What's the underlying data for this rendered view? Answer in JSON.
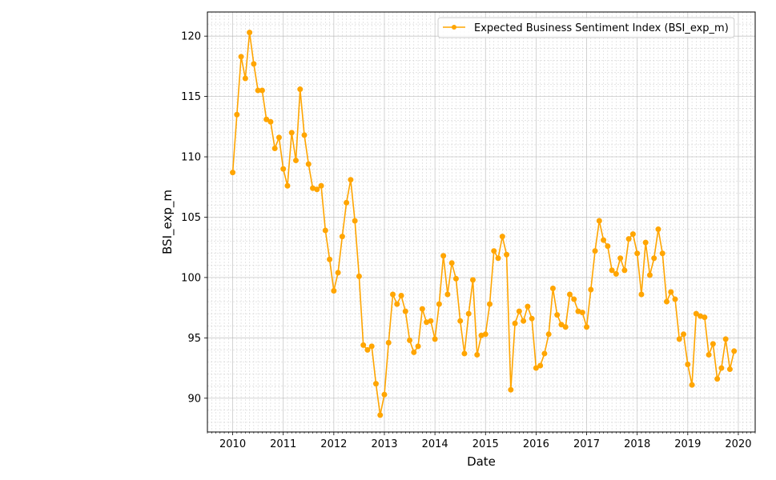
{
  "chart_data": {
    "type": "line",
    "title": "",
    "xlabel": "Date",
    "ylabel": "BSI_exp_m",
    "xlim": [
      "2009-07",
      "2020-05"
    ],
    "ylim": [
      87.2,
      122.0
    ],
    "x_ticks": [
      "2010",
      "2011",
      "2012",
      "2013",
      "2014",
      "2015",
      "2016",
      "2017",
      "2018",
      "2019",
      "2020"
    ],
    "y_ticks": [
      90,
      95,
      100,
      105,
      110,
      115,
      120
    ],
    "grid": true,
    "legend_position": "top-right",
    "series": [
      {
        "name": "Expected Business Sentiment Index (BSI_exp_m)",
        "color": "#ffa500",
        "marker": "circle",
        "start": "2010-01",
        "frequency": "monthly",
        "values": [
          108.7,
          113.5,
          118.3,
          116.5,
          120.3,
          117.7,
          115.5,
          115.5,
          113.1,
          112.9,
          110.7,
          111.6,
          109.0,
          107.6,
          112.0,
          109.7,
          115.6,
          111.8,
          109.4,
          107.4,
          107.3,
          107.6,
          103.9,
          101.5,
          98.9,
          100.4,
          103.4,
          106.2,
          108.1,
          104.7,
          100.1,
          94.4,
          94.0,
          94.3,
          91.2,
          88.6,
          90.3,
          94.6,
          98.6,
          97.8,
          98.5,
          97.2,
          94.8,
          93.8,
          94.3,
          97.4,
          96.3,
          96.4,
          94.9,
          97.8,
          101.8,
          98.6,
          101.2,
          99.9,
          96.4,
          93.7,
          97.0,
          99.8,
          93.6,
          95.2,
          95.3,
          97.8,
          102.2,
          101.6,
          103.4,
          101.9,
          90.7,
          96.2,
          97.2,
          96.4,
          97.6,
          96.6,
          92.5,
          92.7,
          93.7,
          95.3,
          99.1,
          96.9,
          96.1,
          95.9,
          98.6,
          98.2,
          97.2,
          97.1,
          95.9,
          99.0,
          102.2,
          104.7,
          103.1,
          102.6,
          100.6,
          100.3,
          101.6,
          100.6,
          103.2,
          103.6,
          102.0,
          98.6,
          102.9,
          100.2,
          101.6,
          104.0,
          102.0,
          98.0,
          98.8,
          98.2,
          94.9,
          95.3,
          92.8,
          91.1,
          97.0,
          96.8,
          96.7,
          93.6,
          94.5,
          91.6,
          92.5,
          94.9,
          92.4,
          93.9
        ]
      }
    ]
  }
}
